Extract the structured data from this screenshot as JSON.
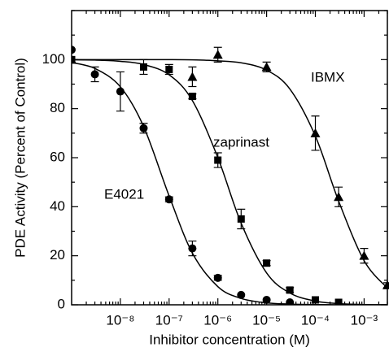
{
  "chart_data": {
    "type": "dose-response",
    "xlabel": "Inhibitor concentration (M)",
    "ylabel": "PDE Activity (Percent of Control)",
    "xscale": "log",
    "xlim": [
      1e-09,
      0.003
    ],
    "ylim": [
      0,
      120
    ],
    "xticks": [
      {
        "value": 1e-08,
        "label": "10⁻⁸"
      },
      {
        "value": 1e-07,
        "label": "10⁻⁷"
      },
      {
        "value": 1e-06,
        "label": "10⁻⁶"
      },
      {
        "value": 1e-05,
        "label": "10⁻⁵"
      },
      {
        "value": 0.0001,
        "label": "10⁻⁴"
      },
      {
        "value": 0.001,
        "label": "10⁻³"
      }
    ],
    "yticks": [
      0,
      20,
      40,
      60,
      80,
      100
    ],
    "curve_x": [
      1e-09,
      3e-09,
      1e-08,
      3e-08,
      1e-07,
      3e-07,
      1e-06,
      3e-06,
      1e-05,
      3e-05,
      0.0001,
      0.0003,
      0.001,
      0.003
    ],
    "series": [
      {
        "name": "E4021",
        "color": "#000000",
        "marker": "circle",
        "x": [
          1e-09,
          3e-09,
          1e-08,
          3e-08,
          1e-07,
          3e-07,
          1e-06,
          3e-06,
          1e-05,
          3e-05
        ],
        "values": [
          104,
          94,
          87,
          72,
          43,
          23,
          11,
          4,
          2,
          1
        ],
        "errors": [
          0,
          3,
          8,
          2,
          1,
          3,
          1,
          0,
          0,
          0
        ],
        "fit": [
          98.8,
          96.4,
          88.9,
          72.7,
          44.4,
          21.1,
          7.4,
          2.6,
          0.8,
          0.3,
          0.1,
          0,
          0,
          0
        ]
      },
      {
        "name": "zaprinast",
        "color": "#000000",
        "marker": "square",
        "x": [
          1e-09,
          3e-08,
          1e-07,
          3e-07,
          1e-06,
          3e-06,
          1e-05,
          3e-05,
          0.0001,
          0.0003
        ],
        "values": [
          100,
          97,
          96,
          85,
          59,
          35,
          17,
          6,
          2,
          1
        ],
        "errors": [
          0,
          3,
          2,
          1,
          3,
          4,
          1,
          1,
          0,
          0
        ],
        "fit": [
          99.9,
          99.8,
          99.3,
          98.0,
          93.8,
          83.3,
          60.0,
          33.3,
          13.0,
          4.8,
          1.5,
          0.5,
          0.1,
          0
        ]
      },
      {
        "name": "IBMX",
        "color": "#000000",
        "marker": "triangle",
        "x": [
          1e-09,
          3e-07,
          1e-06,
          1e-05,
          0.0001,
          0.0003,
          0.001,
          0.003
        ],
        "values": [
          100,
          93,
          102,
          97,
          70,
          44,
          20,
          8
        ],
        "errors": [
          0,
          4,
          3,
          2,
          7,
          4,
          3,
          1
        ],
        "fit": [
          100,
          100,
          100,
          100,
          100,
          99.9,
          99.5,
          98.7,
          95.7,
          88.0,
          68.8,
          42.3,
          18.0,
          6.8
        ]
      }
    ]
  }
}
